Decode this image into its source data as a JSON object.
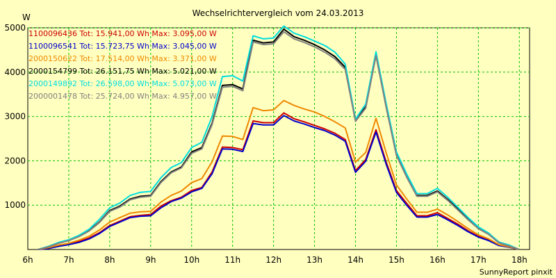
{
  "chart_data": {
    "type": "line",
    "title": "Wechselrichtervergleich vom 24.03.2013",
    "ylabel": "W",
    "xlabel": "",
    "ylim": [
      0,
      5000
    ],
    "xlim": [
      6,
      18.25
    ],
    "y_ticks": [
      1000,
      2000,
      3000,
      4000,
      5000
    ],
    "x_ticks": [
      6,
      7,
      8,
      9,
      10,
      11,
      12,
      13,
      14,
      15,
      16,
      17,
      18
    ],
    "x_tick_labels": [
      "6h",
      "7h",
      "8h",
      "9h",
      "10h",
      "11h",
      "12h",
      "13h",
      "14h",
      "15h",
      "16h",
      "17h",
      "18h"
    ],
    "grid": true,
    "legend_placement": "top-left",
    "x": [
      6.25,
      6.5,
      6.75,
      7.0,
      7.25,
      7.5,
      7.75,
      8.0,
      8.25,
      8.5,
      8.75,
      9.0,
      9.25,
      9.5,
      9.75,
      10.0,
      10.25,
      10.5,
      10.75,
      11.0,
      11.25,
      11.5,
      11.75,
      12.0,
      12.25,
      12.5,
      12.75,
      13.0,
      13.25,
      13.5,
      13.75,
      14.0,
      14.25,
      14.5,
      14.75,
      15.0,
      15.25,
      15.5,
      15.75,
      16.0,
      16.25,
      16.5,
      16.75,
      17.0,
      17.25,
      17.5,
      17.75,
      18.0
    ],
    "series": [
      {
        "name": "1100096436 Tot: 15.941,00 Wh Max: 3.095,00 W",
        "color": "#cc0000",
        "values": [
          0,
          30,
          80,
          120,
          180,
          260,
          380,
          540,
          640,
          740,
          770,
          790,
          980,
          1100,
          1180,
          1330,
          1400,
          1750,
          2310,
          2300,
          2250,
          2900,
          2860,
          2860,
          3080,
          2950,
          2880,
          2800,
          2720,
          2620,
          2480,
          1780,
          2030,
          2700,
          1970,
          1330,
          1040,
          760,
          760,
          830,
          700,
          570,
          420,
          300,
          220,
          100,
          60,
          0
        ]
      },
      {
        "name": "1100096541 Tot: 15.723,75 Wh Max: 3.045,00 W",
        "color": "#0000cc",
        "values": [
          0,
          20,
          70,
          110,
          160,
          240,
          360,
          520,
          620,
          720,
          750,
          760,
          940,
          1080,
          1160,
          1300,
          1380,
          1710,
          2270,
          2260,
          2210,
          2840,
          2810,
          2810,
          3020,
          2900,
          2830,
          2750,
          2680,
          2580,
          2440,
          1740,
          1990,
          2650,
          1920,
          1290,
          1000,
          730,
          730,
          790,
          670,
          540,
          400,
          280,
          200,
          90,
          50,
          0
        ]
      },
      {
        "name": "2000150622 Tot: 17.514,00 Wh Max: 3.371,00 W",
        "color": "#ee8800",
        "values": [
          0,
          40,
          100,
          140,
          210,
          300,
          440,
          620,
          720,
          820,
          850,
          860,
          1070,
          1220,
          1320,
          1510,
          1600,
          1980,
          2560,
          2550,
          2480,
          3200,
          3130,
          3150,
          3360,
          3250,
          3170,
          3100,
          3000,
          2880,
          2740,
          1970,
          2190,
          2960,
          2180,
          1460,
          1140,
          840,
          840,
          910,
          780,
          630,
          470,
          330,
          240,
          110,
          60,
          0
        ]
      },
      {
        "name": "2000154799 Tot: 26.151,75 Wh Max: 5.021,00 W",
        "color": "#000000",
        "values": [
          0,
          60,
          150,
          200,
          300,
          430,
          620,
          880,
          980,
          1140,
          1200,
          1220,
          1530,
          1750,
          1860,
          2200,
          2300,
          2850,
          3700,
          3720,
          3620,
          4720,
          4660,
          4680,
          4970,
          4800,
          4720,
          4620,
          4500,
          4350,
          4110,
          2920,
          3220,
          4420,
          3240,
          2150,
          1660,
          1220,
          1220,
          1320,
          1130,
          910,
          680,
          480,
          350,
          160,
          90,
          0
        ]
      },
      {
        "name": "2000149892 Tot: 26.598,00 Wh Max: 5.073,00 W",
        "color": "#00dddd",
        "values": [
          0,
          70,
          160,
          220,
          320,
          460,
          680,
          940,
          1050,
          1220,
          1290,
          1310,
          1620,
          1850,
          1960,
          2300,
          2420,
          3000,
          3900,
          3920,
          3800,
          4820,
          4750,
          4770,
          5040,
          4880,
          4800,
          4700,
          4600,
          4450,
          4180,
          2940,
          3280,
          4460,
          3290,
          2200,
          1700,
          1260,
          1260,
          1380,
          1180,
          950,
          720,
          510,
          370,
          170,
          100,
          0
        ]
      },
      {
        "name": "2000001478 Tot: 25.724,00 Wh Max: 4.957,00 W",
        "color": "#808080",
        "values": [
          0,
          60,
          140,
          200,
          290,
          420,
          610,
          860,
          960,
          1120,
          1180,
          1200,
          1510,
          1730,
          1840,
          2170,
          2270,
          2820,
          3660,
          3680,
          3580,
          4680,
          4620,
          4640,
          4910,
          4750,
          4670,
          4570,
          4450,
          4300,
          4060,
          2890,
          3190,
          4370,
          3200,
          2120,
          1630,
          1200,
          1200,
          1300,
          1110,
          890,
          670,
          470,
          340,
          150,
          80,
          0
        ]
      }
    ]
  },
  "footer": "SunnyReport pinxit"
}
